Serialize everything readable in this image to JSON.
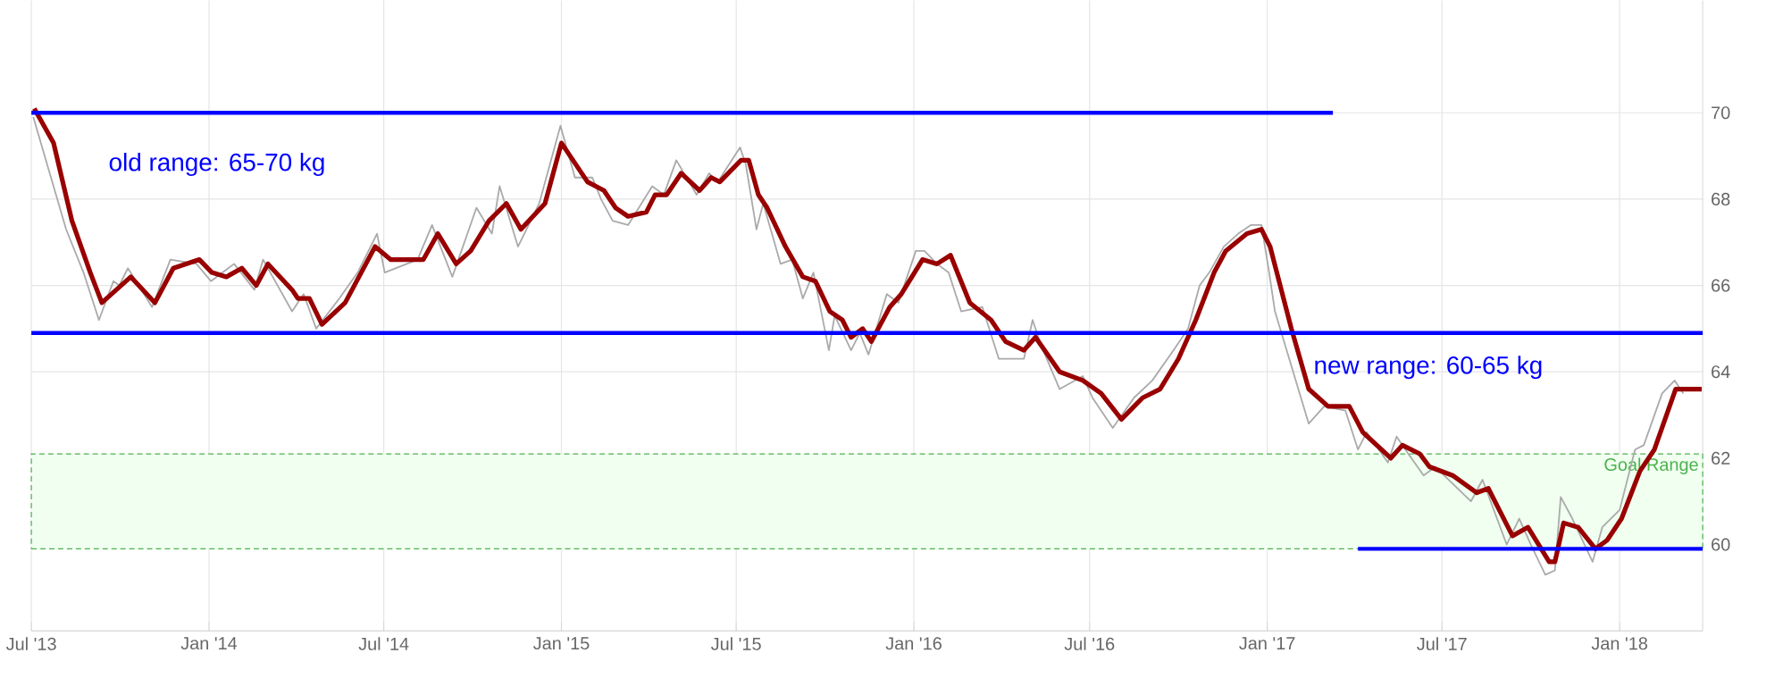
{
  "chart_data": {
    "type": "line",
    "xlim": [
      "2013-07-01",
      "2018-03-28"
    ],
    "ylim": [
      58,
      72.6
    ],
    "xticks": [
      {
        "value": "2013-07-01",
        "label": "Jul '13"
      },
      {
        "value": "2014-01-01",
        "label": "Jan '14"
      },
      {
        "value": "2014-07-01",
        "label": "Jul '14"
      },
      {
        "value": "2015-01-01",
        "label": "Jan '15"
      },
      {
        "value": "2015-07-01",
        "label": "Jul '15"
      },
      {
        "value": "2016-01-01",
        "label": "Jan '16"
      },
      {
        "value": "2016-07-01",
        "label": "Jul '16"
      },
      {
        "value": "2017-01-01",
        "label": "Jan '17"
      },
      {
        "value": "2017-07-01",
        "label": "Jul '17"
      },
      {
        "value": "2018-01-01",
        "label": "Jan '18"
      }
    ],
    "yticks": [
      60,
      62,
      64,
      66,
      68,
      70
    ],
    "grid": true,
    "marker": "none",
    "bands": [
      {
        "axis": "y",
        "from": 59.9,
        "to": 62.1,
        "label": "Goal Range",
        "color": "#f0fff0"
      }
    ],
    "annotations": [
      "old range: 65-70 kg",
      "new range: 60-65 kg"
    ],
    "series": [
      {
        "type": "line",
        "color": "#aaaaaa",
        "x": [
          "2013-07-03",
          "2013-08-06",
          "2013-08-24",
          "2013-09-09",
          "2013-09-24",
          "2013-09-30",
          "2013-10-09",
          "2013-11-03",
          "2013-11-22",
          "2013-12-19",
          "2014-01-03",
          "2014-01-27",
          "2014-02-17",
          "2014-02-26",
          "2014-03-28",
          "2014-04-09",
          "2014-04-22",
          "2014-05-16",
          "2014-06-04",
          "2014-06-24",
          "2014-07-02",
          "2014-08-05",
          "2014-08-20",
          "2014-09-10",
          "2014-10-05",
          "2014-10-21",
          "2014-10-29",
          "2014-11-17",
          "2014-12-09",
          "2014-12-31",
          "2015-01-15",
          "2015-02-02",
          "2015-02-11",
          "2015-02-23",
          "2015-03-11",
          "2015-04-05",
          "2015-04-17",
          "2015-04-30",
          "2015-05-21",
          "2015-06-03",
          "2015-06-12",
          "2015-07-05",
          "2015-07-11",
          "2015-07-22",
          "2015-07-29",
          "2015-08-16",
          "2015-08-28",
          "2015-09-08",
          "2015-09-19",
          "2015-10-05",
          "2015-10-11",
          "2015-10-28",
          "2015-11-06",
          "2015-11-15",
          "2015-12-04",
          "2015-12-16",
          "2016-01-03",
          "2016-01-12",
          "2016-01-25",
          "2016-02-06",
          "2016-02-19",
          "2016-03-12",
          "2016-03-29",
          "2016-04-24",
          "2016-05-03",
          "2016-05-12",
          "2016-05-31",
          "2016-06-24",
          "2016-07-04",
          "2016-07-25",
          "2016-08-16",
          "2016-09-04",
          "2016-09-26",
          "2016-10-11",
          "2016-10-23",
          "2016-11-02",
          "2016-11-17",
          "2016-12-02",
          "2016-12-15",
          "2016-12-26",
          "2017-01-03",
          "2017-01-09",
          "2017-02-13",
          "2017-03-01",
          "2017-03-23",
          "2017-04-05",
          "2017-04-14",
          "2017-05-06",
          "2017-05-15",
          "2017-05-24",
          "2017-06-12",
          "2017-06-24",
          "2017-07-31",
          "2017-08-12",
          "2017-09-06",
          "2017-09-19",
          "2017-10-01",
          "2017-10-16",
          "2017-10-26",
          "2017-11-01",
          "2017-11-13",
          "2017-12-04",
          "2017-12-14",
          "2018-01-01",
          "2018-01-17",
          "2018-01-26",
          "2018-02-14",
          "2018-02-27",
          "2018-03-08"
        ],
        "values": [
          69.9,
          67.3,
          66.3,
          65.2,
          66.1,
          66.0,
          66.4,
          65.5,
          66.6,
          66.5,
          66.1,
          66.5,
          65.9,
          66.6,
          65.4,
          65.8,
          65.0,
          65.7,
          66.3,
          67.2,
          66.3,
          66.6,
          67.4,
          66.2,
          67.8,
          67.2,
          68.3,
          66.9,
          67.9,
          69.7,
          68.5,
          68.5,
          68.0,
          67.5,
          67.4,
          68.3,
          68.1,
          68.9,
          68.1,
          68.6,
          68.4,
          69.2,
          68.8,
          67.3,
          67.9,
          66.5,
          66.6,
          65.7,
          66.3,
          64.5,
          65.3,
          64.5,
          64.9,
          64.4,
          65.8,
          65.6,
          66.8,
          66.8,
          66.5,
          66.3,
          65.4,
          65.5,
          64.3,
          64.3,
          65.2,
          64.6,
          63.6,
          63.9,
          63.4,
          62.7,
          63.4,
          63.8,
          64.5,
          65.0,
          66.0,
          66.3,
          66.9,
          67.2,
          67.4,
          67.4,
          66.3,
          65.4,
          62.8,
          63.2,
          63.1,
          62.2,
          62.6,
          61.9,
          62.5,
          62.2,
          61.6,
          61.8,
          61.0,
          61.5,
          60.0,
          60.6,
          60.0,
          59.3,
          59.4,
          61.1,
          60.6,
          59.6,
          60.4,
          60.8,
          62.2,
          62.3,
          63.5,
          63.8,
          63.5
        ]
      },
      {
        "type": "line",
        "color": "#990000",
        "x": [
          "2013-07-04",
          "2013-07-24",
          "2013-08-12",
          "2013-08-31",
          "2013-09-12",
          "2013-10-12",
          "2013-11-06",
          "2013-11-25",
          "2013-12-22",
          "2014-01-04",
          "2014-01-19",
          "2014-02-04",
          "2014-02-19",
          "2014-03-03",
          "2014-03-28",
          "2014-04-03",
          "2014-04-15",
          "2014-04-28",
          "2014-05-22",
          "2014-06-22",
          "2014-07-08",
          "2014-08-11",
          "2014-08-26",
          "2014-09-14",
          "2014-09-29",
          "2014-10-18",
          "2014-11-05",
          "2014-11-20",
          "2014-12-15",
          "2015-01-01",
          "2015-01-28",
          "2015-02-14",
          "2015-02-26",
          "2015-03-11",
          "2015-03-30",
          "2015-04-08",
          "2015-04-20",
          "2015-05-05",
          "2015-05-24",
          "2015-06-05",
          "2015-06-14",
          "2015-07-06",
          "2015-07-14",
          "2015-07-24",
          "2015-08-02",
          "2015-08-21",
          "2015-09-08",
          "2015-09-21",
          "2015-10-06",
          "2015-10-19",
          "2015-10-28",
          "2015-11-09",
          "2015-11-18",
          "2015-12-07",
          "2015-12-19",
          "2016-01-10",
          "2016-01-25",
          "2016-02-08",
          "2016-02-28",
          "2016-03-21",
          "2016-04-05",
          "2016-04-24",
          "2016-05-06",
          "2016-05-31",
          "2016-06-24",
          "2016-07-13",
          "2016-08-03",
          "2016-08-25",
          "2016-09-12",
          "2016-10-01",
          "2016-10-19",
          "2016-11-07",
          "2016-11-19",
          "2016-12-11",
          "2016-12-26",
          "2017-01-04",
          "2017-01-26",
          "2017-02-13",
          "2017-03-05",
          "2017-03-27",
          "2017-04-10",
          "2017-05-09",
          "2017-05-21",
          "2017-06-08",
          "2017-06-18",
          "2017-07-12",
          "2017-08-06",
          "2017-08-18",
          "2017-09-12",
          "2017-09-28",
          "2017-10-20",
          "2017-10-26",
          "2017-11-04",
          "2017-11-19",
          "2017-12-07",
          "2017-12-19",
          "2018-01-03",
          "2018-01-22",
          "2018-02-06",
          "2018-02-28",
          "2018-03-16",
          "2018-03-27"
        ],
        "values": [
          70.1,
          69.3,
          67.5,
          66.3,
          65.6,
          66.2,
          65.6,
          66.4,
          66.6,
          66.3,
          66.2,
          66.4,
          66.0,
          66.5,
          65.9,
          65.7,
          65.7,
          65.1,
          65.6,
          66.9,
          66.6,
          66.6,
          67.2,
          66.5,
          66.8,
          67.5,
          67.9,
          67.3,
          67.9,
          69.3,
          68.4,
          68.2,
          67.8,
          67.6,
          67.7,
          68.1,
          68.1,
          68.6,
          68.2,
          68.5,
          68.4,
          68.9,
          68.9,
          68.1,
          67.8,
          66.9,
          66.2,
          66.1,
          65.4,
          65.2,
          64.8,
          65.0,
          64.7,
          65.5,
          65.8,
          66.6,
          66.5,
          66.7,
          65.6,
          65.2,
          64.7,
          64.5,
          64.8,
          64.0,
          63.8,
          63.5,
          62.9,
          63.4,
          63.6,
          64.3,
          65.2,
          66.3,
          66.8,
          67.2,
          67.3,
          66.9,
          65.0,
          63.6,
          63.2,
          63.2,
          62.6,
          62.0,
          62.3,
          62.1,
          61.8,
          61.6,
          61.2,
          61.3,
          60.2,
          60.4,
          59.6,
          59.6,
          60.5,
          60.4,
          59.9,
          60.1,
          60.6,
          61.7,
          62.2,
          63.6,
          63.6,
          63.6
        ]
      },
      {
        "type": "line",
        "color": "#0000ff",
        "x": [
          "2013-07-01",
          "2017-03-10"
        ],
        "values": [
          70.0,
          70.0
        ]
      },
      {
        "type": "line",
        "color": "#0000ff",
        "x": [
          "2013-07-01",
          "2018-03-28"
        ],
        "values": [
          64.9,
          64.9
        ]
      },
      {
        "type": "line",
        "color": "#0000ff",
        "x": [
          "2017-04-05",
          "2018-03-28"
        ],
        "values": [
          59.9,
          59.9
        ]
      }
    ]
  }
}
